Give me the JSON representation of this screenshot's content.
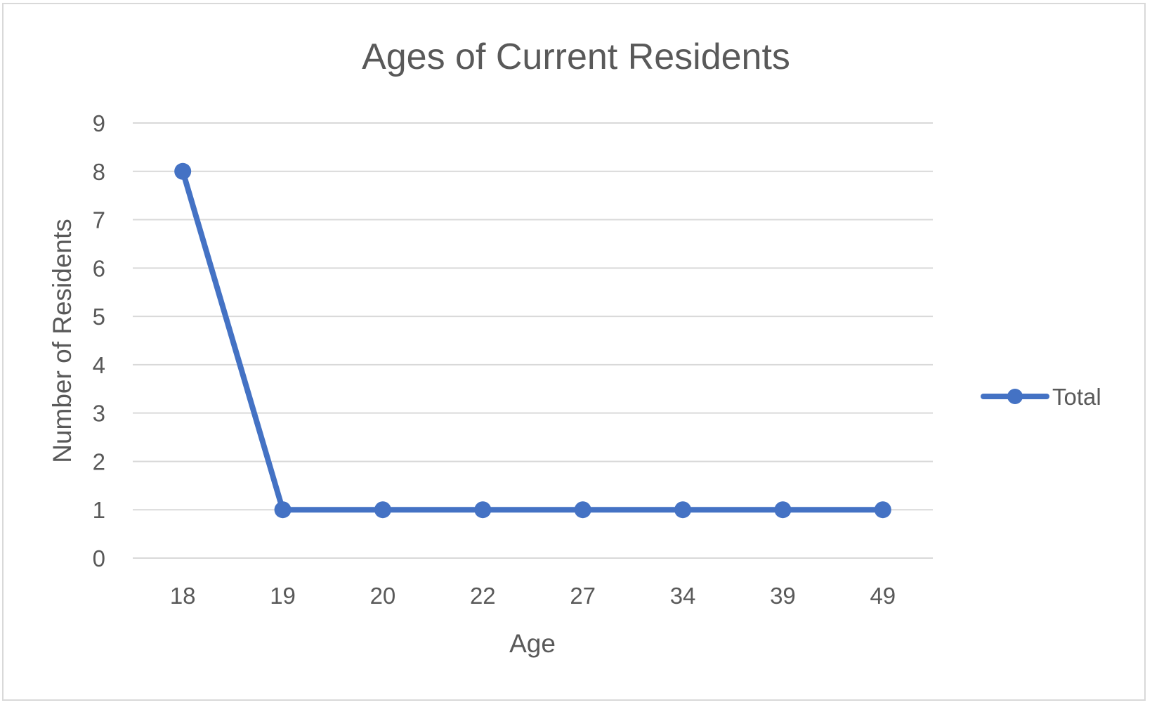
{
  "chart_data": {
    "type": "line",
    "title": "Ages of Current Residents",
    "xlabel": "Age",
    "ylabel": "Number of Residents",
    "categories": [
      "18",
      "19",
      "20",
      "22",
      "27",
      "34",
      "39",
      "49"
    ],
    "series": [
      {
        "name": "Total",
        "values": [
          8,
          1,
          1,
          1,
          1,
          1,
          1,
          1
        ],
        "color": "#4472c4"
      }
    ],
    "ylim": [
      0,
      9
    ],
    "yticks": [
      0,
      1,
      2,
      3,
      4,
      5,
      6,
      7,
      8,
      9
    ],
    "grid": true,
    "legend_position": "right"
  }
}
